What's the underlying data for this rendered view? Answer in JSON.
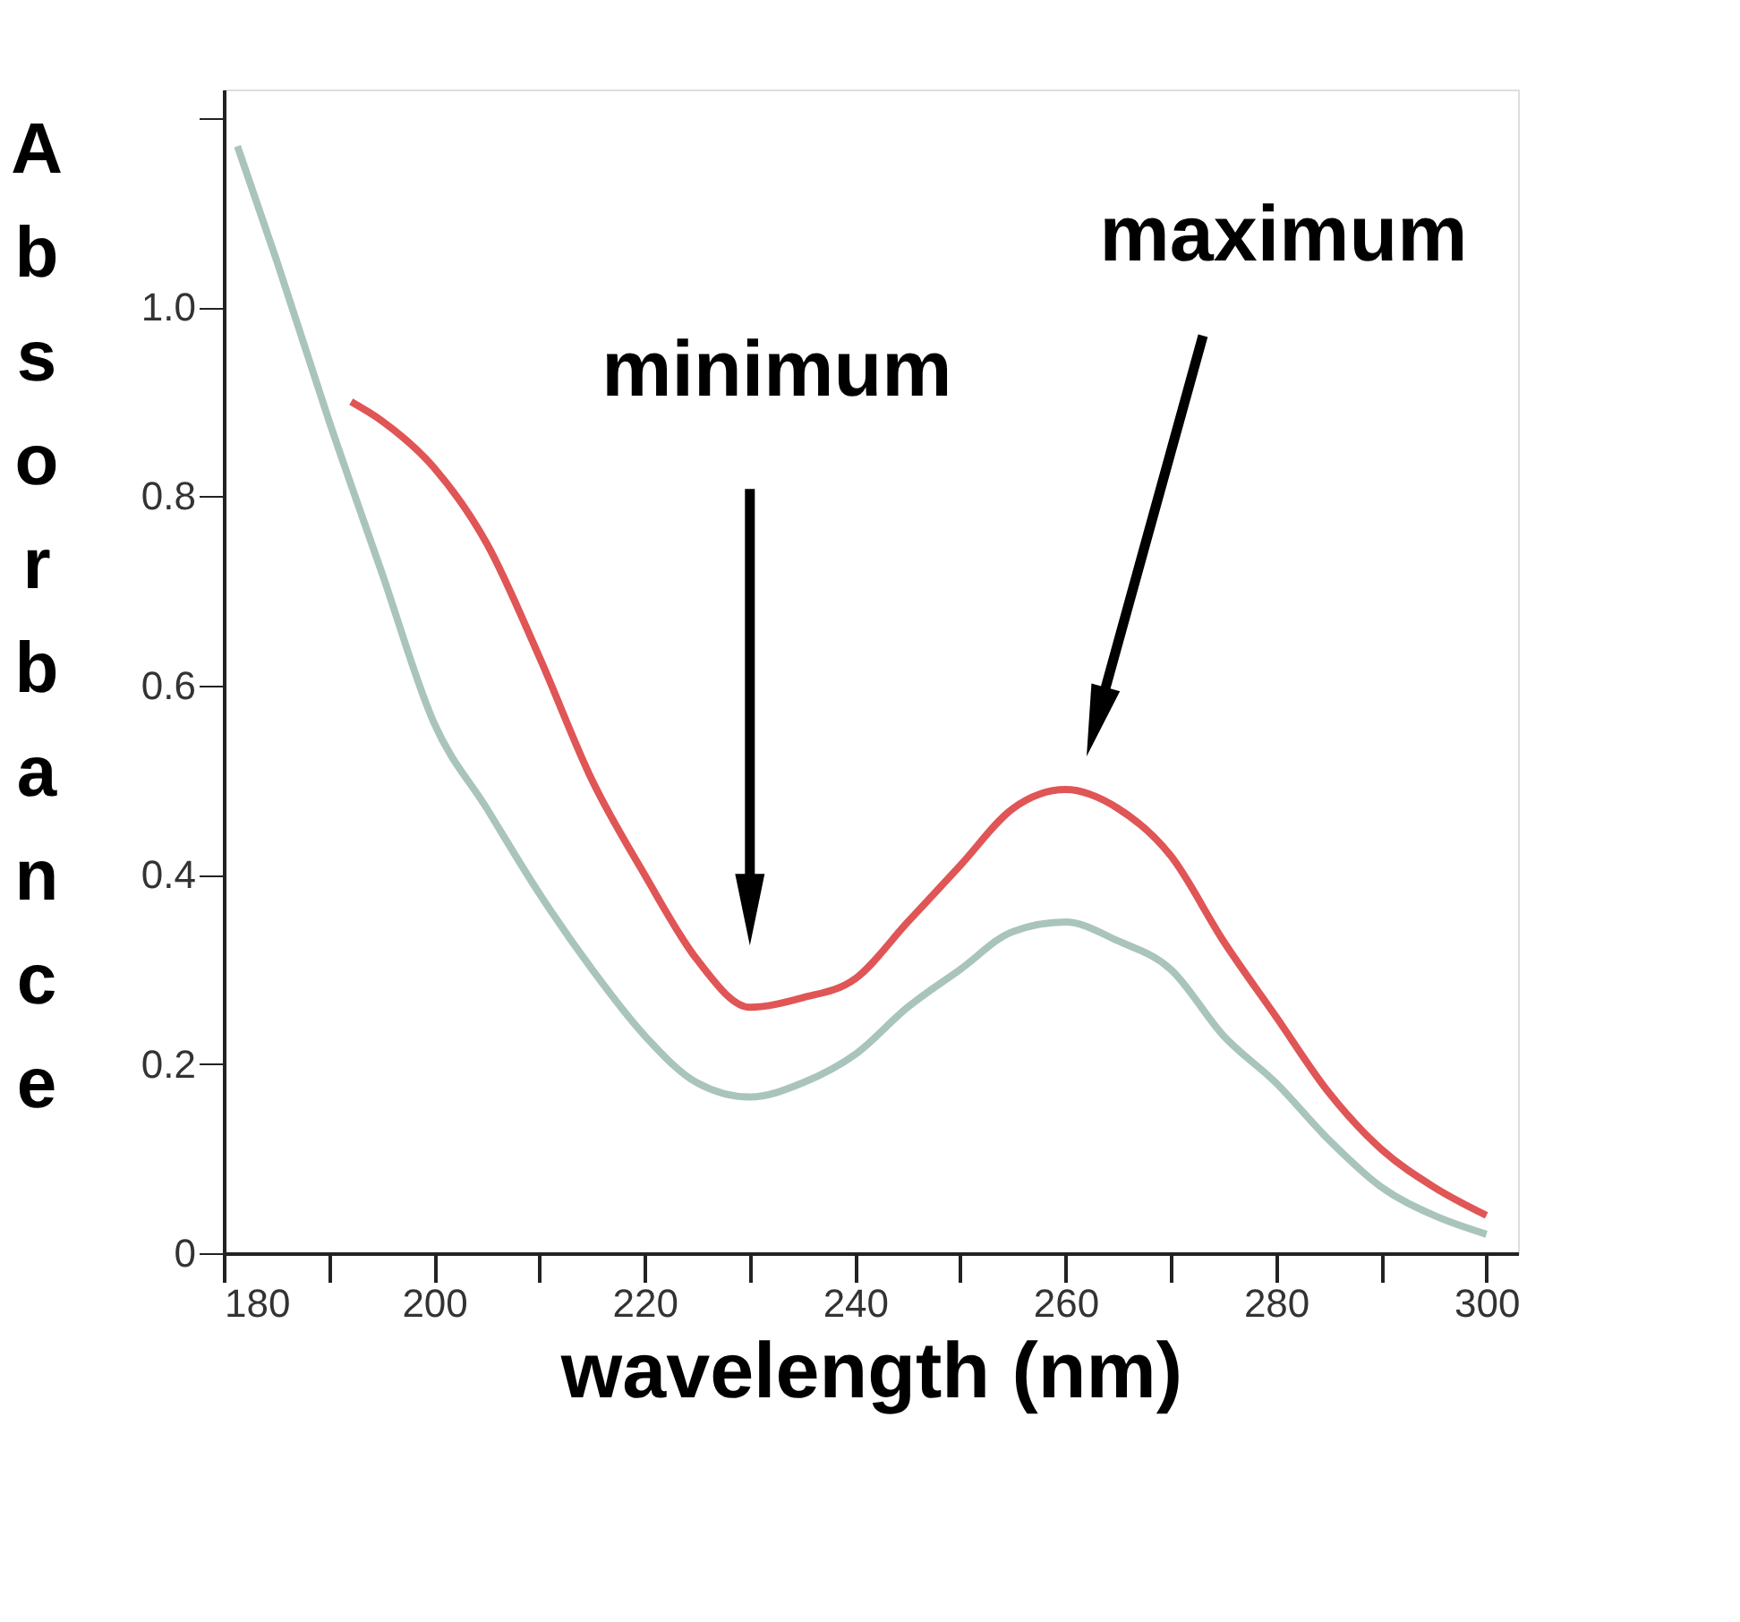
{
  "chart_data": {
    "type": "line",
    "xlabel": "wavelength (nm)",
    "ylabel": "Absorbance",
    "xlim": [
      180,
      303
    ],
    "ylim": [
      0,
      1.23
    ],
    "xticks": [
      180,
      {
        "value": 190,
        "label": null
      },
      200,
      {
        "value": 210,
        "label": null
      },
      220,
      {
        "value": 230,
        "label": null
      },
      240,
      {
        "value": 250,
        "label": null
      },
      260,
      {
        "value": 270,
        "label": null
      },
      280,
      {
        "value": 290,
        "label": null
      },
      300
    ],
    "yticks": [
      0,
      0.2,
      0.4,
      0.6,
      0.8,
      {
        "value": 1,
        "label": "1.0"
      },
      {
        "value": 1.2,
        "label": null
      }
    ],
    "grid": false,
    "legend": false,
    "marker": "none",
    "line_style": "solid",
    "series": [
      {
        "color": "#a9c4bc",
        "x": [
          181.3,
          185,
          190,
          195,
          200,
          205,
          210,
          215,
          220,
          225,
          230,
          235,
          240,
          245,
          250,
          255,
          260,
          265,
          270,
          275,
          280,
          285,
          290,
          295,
          300
        ],
        "values": [
          1.17,
          1.05,
          0.88,
          0.72,
          0.56,
          0.47,
          0.38,
          0.3,
          0.23,
          0.18,
          0.165,
          0.18,
          0.21,
          0.26,
          0.3,
          0.34,
          0.35,
          0.33,
          0.3,
          0.23,
          0.18,
          0.12,
          0.07,
          0.04,
          0.02
        ]
      },
      {
        "color": "#e05555",
        "x": [
          192.1,
          195,
          200,
          205,
          210,
          215,
          220,
          225,
          230,
          235,
          240,
          245,
          250,
          255,
          260,
          265,
          270,
          275,
          280,
          285,
          290,
          295,
          300
        ],
        "values": [
          0.9,
          0.88,
          0.83,
          0.75,
          0.63,
          0.5,
          0.4,
          0.31,
          0.26,
          0.27,
          0.29,
          0.35,
          0.41,
          0.47,
          0.49,
          0.47,
          0.42,
          0.33,
          0.25,
          0.17,
          0.11,
          0.07,
          0.04
        ]
      }
    ],
    "annotations": [
      "minimum",
      "maximum"
    ]
  }
}
